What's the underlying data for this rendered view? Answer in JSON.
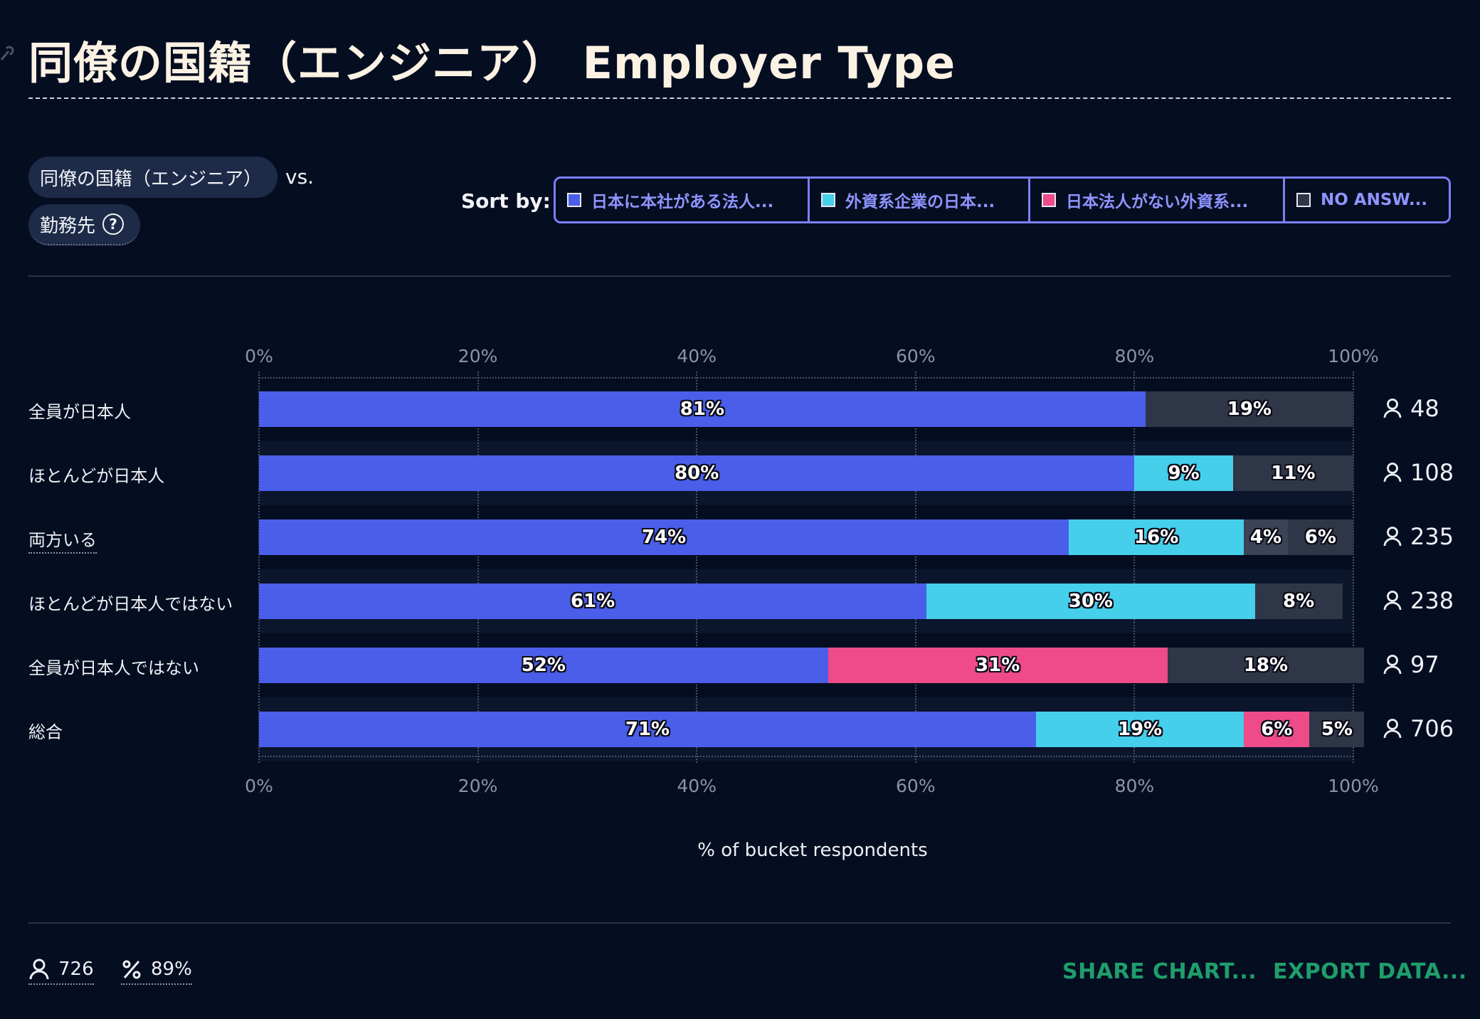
{
  "header": {
    "title": "同僚の国籍（エンジニア） Employer Type"
  },
  "variables": {
    "primary": "同僚の国籍（エンジニア）",
    "vs": "vs.",
    "secondary": "勤務先"
  },
  "sort": {
    "label": "Sort by:",
    "options": [
      {
        "label": "日本に本社がある法人...",
        "color": "#4a5eea"
      },
      {
        "label": "外資系企業の日本...",
        "color": "#45cfeb"
      },
      {
        "label": "日本法人がない外資系...",
        "color": "#ee4b88"
      },
      {
        "label": "NO ANSW...",
        "color": "#2e3648"
      }
    ]
  },
  "chart_data": {
    "type": "bar",
    "orientation": "horizontal-stacked-100",
    "xlabel": "% of bucket respondents",
    "x_ticks": [
      "0%",
      "20%",
      "40%",
      "60%",
      "80%",
      "100%"
    ],
    "xlim": [
      0,
      100
    ],
    "series": [
      {
        "name": "日本に本社がある法人...",
        "color": "#4a5eea"
      },
      {
        "name": "外資系企業の日本...",
        "color": "#45cfeb"
      },
      {
        "name": "日本法人がない外資系...",
        "color": "#ee4b88"
      },
      {
        "name": "NO ANSW...",
        "color": "#2e3648"
      }
    ],
    "categories": [
      {
        "label": "全員が日本人",
        "count": "48",
        "segments": [
          {
            "series": 0,
            "value": 81,
            "label": "81%"
          },
          {
            "series": 3,
            "value": 19,
            "label": "19%"
          }
        ]
      },
      {
        "label": "ほとんどが日本人",
        "count": "108",
        "segments": [
          {
            "series": 0,
            "value": 80,
            "label": "80%"
          },
          {
            "series": 1,
            "value": 9,
            "label": "9%"
          },
          {
            "series": 3,
            "value": 11,
            "label": "11%"
          }
        ]
      },
      {
        "label": "両方いる",
        "count": "235",
        "dotted": true,
        "segments": [
          {
            "series": 0,
            "value": 74,
            "label": "74%"
          },
          {
            "series": 1,
            "value": 16,
            "label": "16%"
          },
          {
            "series": 3,
            "value": 4,
            "label": "4%",
            "color": "#3b4356"
          },
          {
            "series": 3,
            "value": 6,
            "label": "6%"
          }
        ]
      },
      {
        "label": "ほとんどが日本人ではない",
        "count": "238",
        "segments": [
          {
            "series": 0,
            "value": 61,
            "label": "61%"
          },
          {
            "series": 1,
            "value": 30,
            "label": "30%"
          },
          {
            "series": 3,
            "value": 8,
            "label": "8%"
          }
        ]
      },
      {
        "label": "全員が日本人ではない",
        "count": "97",
        "segments": [
          {
            "series": 0,
            "value": 52,
            "label": "52%"
          },
          {
            "series": 2,
            "value": 31,
            "label": "31%"
          },
          {
            "series": 3,
            "value": 18,
            "label": "18%"
          }
        ]
      },
      {
        "label": "総合",
        "count": "706",
        "segments": [
          {
            "series": 0,
            "value": 71,
            "label": "71%"
          },
          {
            "series": 1,
            "value": 19,
            "label": "19%"
          },
          {
            "series": 2,
            "value": 6,
            "label": "6%"
          },
          {
            "series": 3,
            "value": 5,
            "label": "5%"
          }
        ]
      }
    ]
  },
  "footer": {
    "respondents": "726",
    "percent": "89%",
    "share_label": "SHARE CHART...",
    "export_label": "EXPORT DATA..."
  }
}
